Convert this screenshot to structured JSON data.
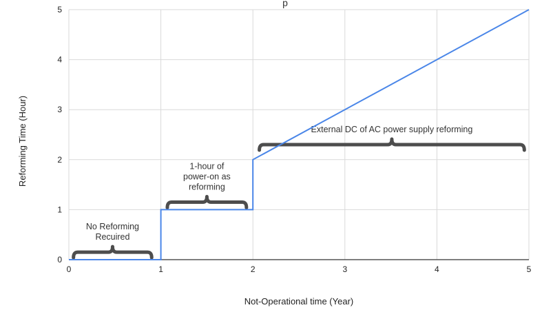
{
  "chart_data": {
    "type": "line",
    "title": "p",
    "xlabel": "Not-Operational time (Year)",
    "ylabel": "Reforming Time (Hour)",
    "xlim": [
      0,
      5
    ],
    "ylim": [
      0,
      5
    ],
    "x_ticks": [
      "0",
      "1",
      "2",
      "3",
      "4",
      "5"
    ],
    "y_ticks": [
      "0",
      "1",
      "2",
      "3",
      "4",
      "5"
    ],
    "grid": true,
    "series": [
      {
        "color": "#4a86e8",
        "points": [
          [
            0,
            0
          ],
          [
            1,
            0
          ],
          [
            1,
            1
          ],
          [
            2,
            1
          ],
          [
            2,
            2
          ],
          [
            5,
            5
          ]
        ]
      }
    ],
    "annotations": [
      {
        "lines": [
          "No Reforming",
          "Recuired"
        ],
        "brace_x": [
          0.05,
          0.9
        ],
        "brace_y": 0.15
      },
      {
        "lines": [
          "1-hour of",
          "power-on as",
          "reforming"
        ],
        "brace_x": [
          1.07,
          1.93
        ],
        "brace_y": 1.15
      },
      {
        "lines": [
          "External DC of AC power supply reforming"
        ],
        "brace_x": [
          2.07,
          4.95
        ],
        "brace_y": 2.3
      }
    ]
  }
}
